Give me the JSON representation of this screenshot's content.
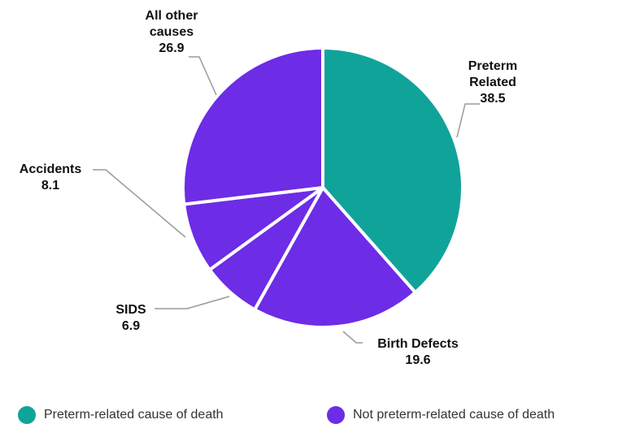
{
  "chart_data": {
    "type": "pie",
    "title": "",
    "slices": [
      {
        "label_lines": [
          "Preterm",
          "Related"
        ],
        "value": 38.5,
        "value_text": "38.5",
        "color": "#10a39a",
        "group": "preterm"
      },
      {
        "label_lines": [
          "Birth Defects"
        ],
        "value": 19.6,
        "value_text": "19.6",
        "color": "#6d2ce6",
        "group": "not-preterm"
      },
      {
        "label_lines": [
          "SIDS"
        ],
        "value": 6.9,
        "value_text": "6.9",
        "color": "#6d2ce6",
        "group": "not-preterm"
      },
      {
        "label_lines": [
          "Accidents"
        ],
        "value": 8.1,
        "value_text": "8.1",
        "color": "#6d2ce6",
        "group": "not-preterm"
      },
      {
        "label_lines": [
          "All other",
          "causes"
        ],
        "value": 26.9,
        "value_text": "26.9",
        "color": "#6d2ce6",
        "group": "not-preterm"
      }
    ],
    "legend": [
      {
        "label": "Preterm-related cause of death",
        "color": "#10a39a"
      },
      {
        "label": "Not preterm-related cause of death",
        "color": "#6d2ce6"
      }
    ],
    "legend_position": "bottom"
  }
}
